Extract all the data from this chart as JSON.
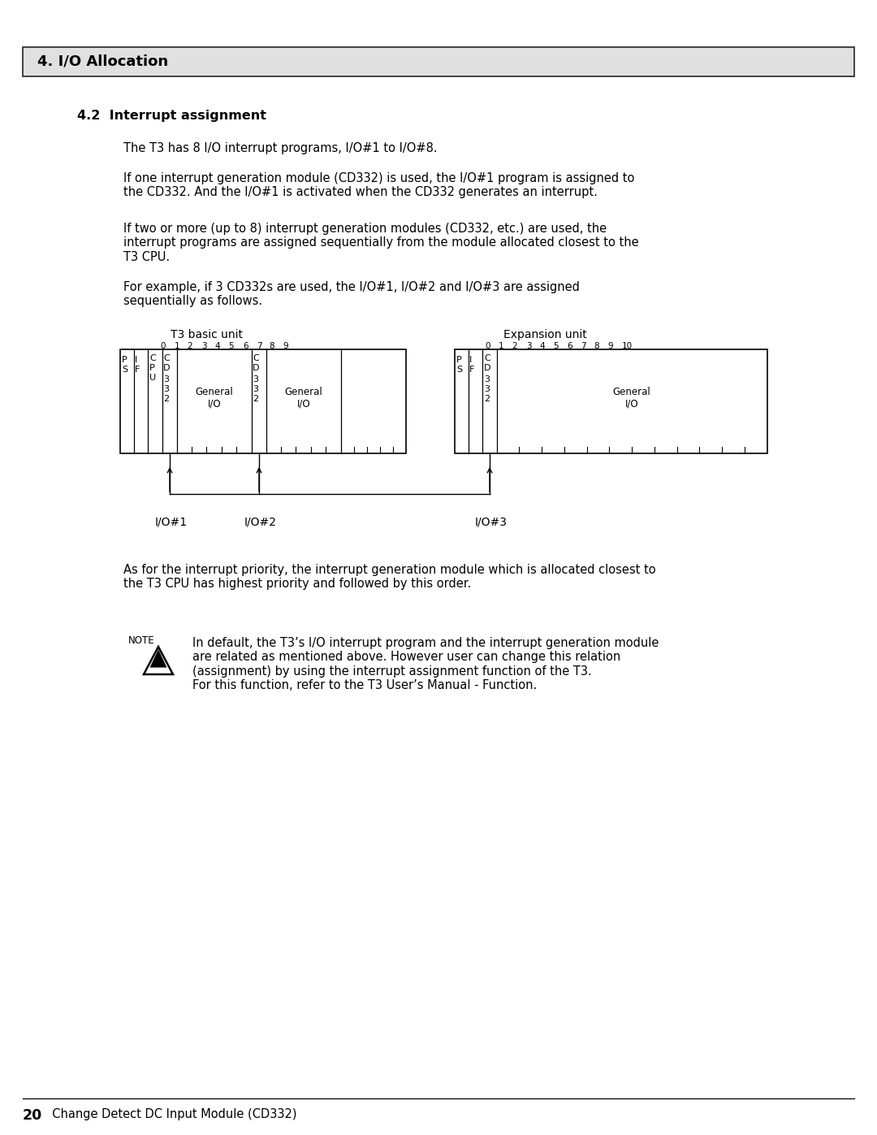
{
  "page_title": "4. I/O Allocation",
  "section_title": "4.2  Interrupt assignment",
  "para1": "The T3 has 8 I/O interrupt programs, I/O#1 to I/O#8.",
  "para2": "If one interrupt generation module (CD332) is used, the I/O#1 program is assigned to\nthe CD332. And the I/O#1 is activated when the CD332 generates an interrupt.",
  "para3": "If two or more (up to 8) interrupt generation modules (CD332, etc.) are used, the\ninterrupt programs are assigned sequentially from the module allocated closest to the\nT3 CPU.",
  "para4": "For example, if 3 CD332s are used, the I/O#1, I/O#2 and I/O#3 are assigned\nsequentially as follows.",
  "para5": "As for the interrupt priority, the interrupt generation module which is allocated closest to\nthe T3 CPU has highest priority and followed by this order.",
  "note_text": "In default, the T3’s I/O interrupt program and the interrupt generation module\nare related as mentioned above. However user can change this relation\n(assignment) by using the interrupt assignment function of the T3.\nFor this function, refer to the T3 User’s Manual - Function.",
  "footer_num": "20",
  "footer_text": "  Change Detect DC Input Module (CD332)",
  "bg_color": "#ffffff",
  "header_bg": "#e0e0e0"
}
